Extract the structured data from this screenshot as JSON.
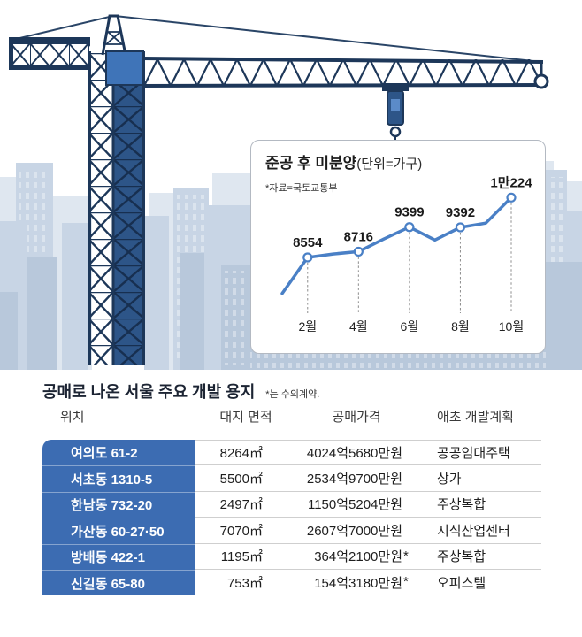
{
  "colors": {
    "chart_line": "#4a80c6",
    "location_column": "#3c6cb2",
    "crane_navy": "#1d3759"
  },
  "chart_data": {
    "type": "line",
    "title": "준공 후 미분양",
    "unit": "(단위=가구)",
    "source": "*자료=국토교통부",
    "x": [
      1,
      2,
      3,
      4,
      5,
      6,
      7,
      8,
      9,
      10
    ],
    "values": [
      7550,
      8554,
      8650,
      8716,
      9070,
      9399,
      9040,
      9392,
      9510,
      10224
    ],
    "data_labels": [
      null,
      "8554",
      null,
      "8716",
      null,
      "9399",
      null,
      "9392",
      null,
      "1만224"
    ],
    "ticks": [
      2,
      4,
      6,
      8,
      10
    ],
    "tick_labels": [
      "2월",
      "4월",
      "6월",
      "8월",
      "10월"
    ],
    "ylim": [
      7000,
      10700
    ],
    "grid": false
  },
  "table": {
    "title": "공매로 나온 서울 주요 개발 용지",
    "note": "*는 수의계약.",
    "headers": [
      "위치",
      "대지 면적",
      "공매가격",
      "애초 개발계획"
    ],
    "rows": [
      {
        "location": "여의도 61-2",
        "area": "8264㎡",
        "price": "4024억5680만원",
        "plan": "공공임대주택"
      },
      {
        "location": "서초동 1310-5",
        "area": "5500㎡",
        "price": "2534억9700만원",
        "plan": "상가"
      },
      {
        "location": "한남동 732-20",
        "area": "2497㎡",
        "price": "1150억5204만원",
        "plan": "주상복합"
      },
      {
        "location": "가산동 60-27·50",
        "area": "7070㎡",
        "price": "2607억7000만원",
        "plan": "지식산업센터"
      },
      {
        "location": "방배동 422-1",
        "area": "1195㎡",
        "price": "364억2100만원",
        "mark": "*",
        "plan": "주상복합"
      },
      {
        "location": "신길동 65-80",
        "area": "753㎡",
        "price": "154억3180만원",
        "mark": "*",
        "plan": "오피스텔"
      }
    ]
  }
}
